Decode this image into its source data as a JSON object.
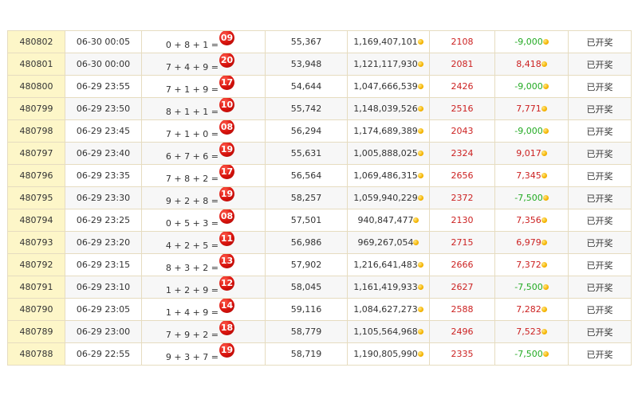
{
  "rows": [
    {
      "issue": "480802",
      "time": "06-30 00:05",
      "expr": "0 + 8 + 1 =",
      "result": "09",
      "players": "55,367",
      "pool": "1,169,407,101",
      "hits": "2108",
      "profit": "-9,000",
      "profit_sign": "neg",
      "status": "已开奖"
    },
    {
      "issue": "480801",
      "time": "06-30 00:00",
      "expr": "7 + 4 + 9 =",
      "result": "20",
      "players": "53,948",
      "pool": "1,121,117,930",
      "hits": "2081",
      "profit": "8,418",
      "profit_sign": "pos",
      "status": "已开奖"
    },
    {
      "issue": "480800",
      "time": "06-29 23:55",
      "expr": "7 + 1 + 9 =",
      "result": "17",
      "players": "54,644",
      "pool": "1,047,666,539",
      "hits": "2426",
      "profit": "-9,000",
      "profit_sign": "neg",
      "status": "已开奖"
    },
    {
      "issue": "480799",
      "time": "06-29 23:50",
      "expr": "8 + 1 + 1 =",
      "result": "10",
      "players": "55,742",
      "pool": "1,148,039,526",
      "hits": "2516",
      "profit": "7,771",
      "profit_sign": "pos",
      "status": "已开奖"
    },
    {
      "issue": "480798",
      "time": "06-29 23:45",
      "expr": "7 + 1 + 0 =",
      "result": "08",
      "players": "56,294",
      "pool": "1,174,689,389",
      "hits": "2043",
      "profit": "-9,000",
      "profit_sign": "neg",
      "status": "已开奖"
    },
    {
      "issue": "480797",
      "time": "06-29 23:40",
      "expr": "6 + 7 + 6 =",
      "result": "19",
      "players": "55,631",
      "pool": "1,005,888,025",
      "hits": "2324",
      "profit": "9,017",
      "profit_sign": "pos",
      "status": "已开奖"
    },
    {
      "issue": "480796",
      "time": "06-29 23:35",
      "expr": "7 + 8 + 2 =",
      "result": "17",
      "players": "56,564",
      "pool": "1,069,486,315",
      "hits": "2656",
      "profit": "7,345",
      "profit_sign": "pos",
      "status": "已开奖"
    },
    {
      "issue": "480795",
      "time": "06-29 23:30",
      "expr": "9 + 2 + 8 =",
      "result": "19",
      "players": "58,257",
      "pool": "1,059,940,229",
      "hits": "2372",
      "profit": "-7,500",
      "profit_sign": "neg",
      "status": "已开奖"
    },
    {
      "issue": "480794",
      "time": "06-29 23:25",
      "expr": "0 + 5 + 3 =",
      "result": "08",
      "players": "57,501",
      "pool": "940,847,477",
      "hits": "2130",
      "profit": "7,356",
      "profit_sign": "pos",
      "status": "已开奖"
    },
    {
      "issue": "480793",
      "time": "06-29 23:20",
      "expr": "4 + 2 + 5 =",
      "result": "11",
      "players": "56,986",
      "pool": "969,267,054",
      "hits": "2715",
      "profit": "6,979",
      "profit_sign": "pos",
      "status": "已开奖"
    },
    {
      "issue": "480792",
      "time": "06-29 23:15",
      "expr": "8 + 3 + 2 =",
      "result": "13",
      "players": "57,902",
      "pool": "1,216,641,483",
      "hits": "2666",
      "profit": "7,372",
      "profit_sign": "pos",
      "status": "已开奖"
    },
    {
      "issue": "480791",
      "time": "06-29 23:10",
      "expr": "1 + 2 + 9 =",
      "result": "12",
      "players": "58,045",
      "pool": "1,161,419,933",
      "hits": "2627",
      "profit": "-7,500",
      "profit_sign": "neg",
      "status": "已开奖"
    },
    {
      "issue": "480790",
      "time": "06-29 23:05",
      "expr": "1 + 4 + 9 =",
      "result": "14",
      "players": "59,116",
      "pool": "1,084,627,273",
      "hits": "2588",
      "profit": "7,282",
      "profit_sign": "pos",
      "status": "已开奖"
    },
    {
      "issue": "480789",
      "time": "06-29 23:00",
      "expr": "7 + 9 + 2 =",
      "result": "18",
      "players": "58,779",
      "pool": "1,105,564,968",
      "hits": "2496",
      "profit": "7,523",
      "profit_sign": "pos",
      "status": "已开奖"
    },
    {
      "issue": "480788",
      "time": "06-29 22:55",
      "expr": "9 + 3 + 7 =",
      "result": "19",
      "players": "58,719",
      "pool": "1,190,805,990",
      "hits": "2335",
      "profit": "-7,500",
      "profit_sign": "neg",
      "status": "已开奖"
    }
  ],
  "colors": {
    "negative": "#22aa22",
    "positive": "#cc2222",
    "ball": "#d8120c",
    "issue_bg": "#fdf6c8"
  },
  "icons": {
    "coin": "gold-coin-icon",
    "ball": "red-ball-icon"
  }
}
